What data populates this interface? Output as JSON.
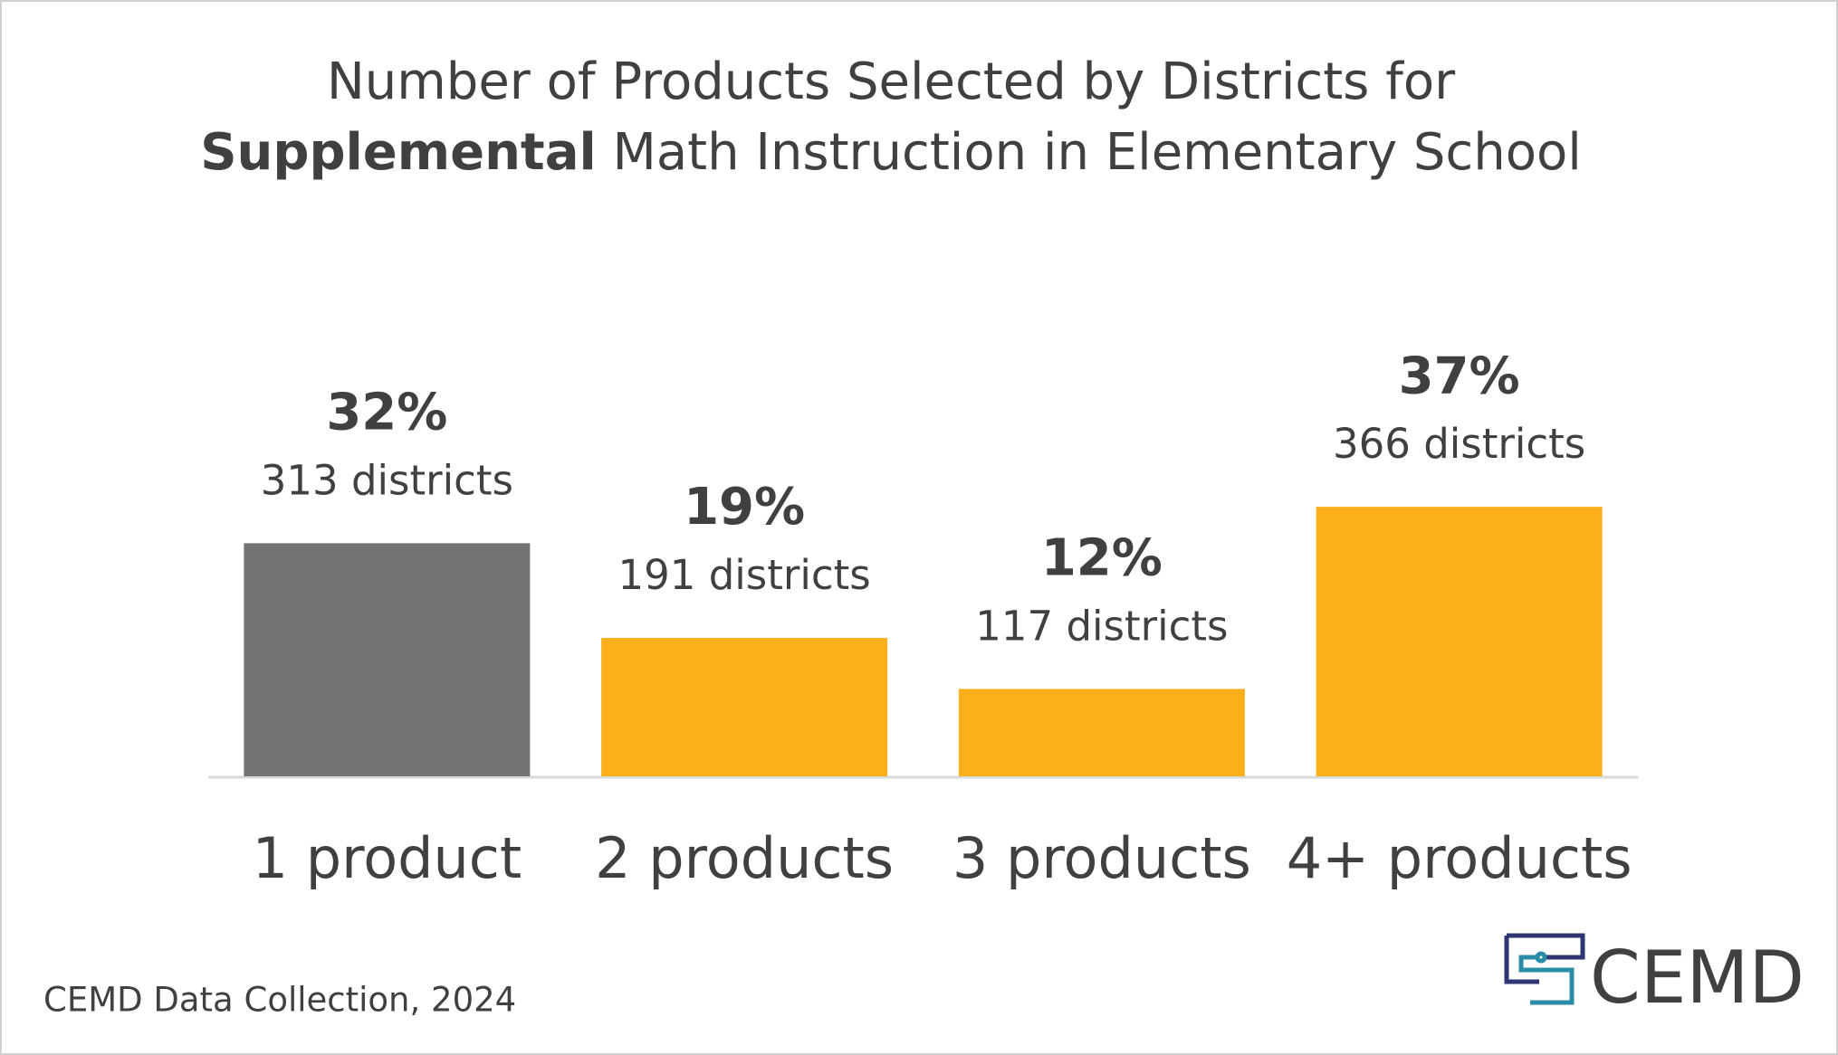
{
  "chart_data": {
    "type": "bar",
    "title": "Number of Products Selected by Districts for",
    "title_bold": "Supplemental",
    "title_rest": "Math Instruction in Elementary School",
    "categories": [
      "1 product",
      "2 products",
      "3 products",
      "4+ products"
    ],
    "values": [
      32,
      19,
      12,
      37
    ],
    "value_labels": [
      "32%",
      "19%",
      "12%",
      "37%"
    ],
    "district_counts": [
      313,
      191,
      117,
      366
    ],
    "count_labels": [
      "313 districts",
      "191 districts",
      "117 districts",
      "366 districts"
    ],
    "colors": [
      "#737373",
      "#fbaf1a",
      "#fbaf1a",
      "#fbaf1a"
    ],
    "source": "CEMD Data Collection, 2024",
    "logo": "CEMD"
  }
}
